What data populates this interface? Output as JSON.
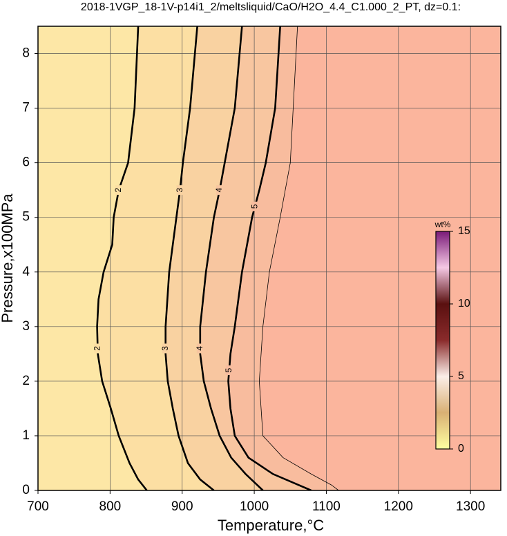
{
  "chart_data": {
    "type": "contour",
    "title": "2018-1VGP_18-1V-p14i1_2/meltsliquid/CaO/H2O_4.4_C1.000_2_PT, dz=0.1:",
    "x_label": "Temperature,°C",
    "y_label": "Pressure,x100MPa",
    "xlim": [
      700,
      1342
    ],
    "ylim": [
      0,
      8.5
    ],
    "xticks": [
      700,
      800,
      900,
      1000,
      1100,
      1200,
      1300
    ],
    "yticks": [
      0,
      1,
      2,
      3,
      4,
      5,
      6,
      7,
      8
    ],
    "grid": true,
    "background": "#fde7a6",
    "contours": [
      {
        "label": "2",
        "fill": "#fcdfa3",
        "x": [
          839,
          834,
          825,
          812,
          805,
          803,
          791,
          784,
          782,
          783,
          789,
          801,
          812,
          827,
          839,
          851
        ],
        "y": [
          8.5,
          7,
          6,
          5.5,
          5,
          4.5,
          4,
          3.5,
          3,
          2.5,
          2,
          1.5,
          1,
          0.5,
          0.2,
          0
        ]
      },
      {
        "label": "3",
        "fill": "#f9d2a1",
        "x": [
          921,
          911,
          901,
          897,
          892,
          882,
          877,
          877,
          880,
          887,
          895,
          908,
          925,
          944
        ],
        "y": [
          8.5,
          7,
          6,
          5.5,
          5,
          4,
          3,
          2.5,
          2,
          1.5,
          1,
          0.5,
          0.2,
          0
        ]
      },
      {
        "label": "4",
        "fill": "#f8c6a0",
        "x": [
          983,
          973,
          959,
          952,
          944,
          933,
          925,
          925,
          930,
          940,
          952,
          968,
          988,
          1012
        ],
        "y": [
          8.5,
          7,
          6,
          5.5,
          5,
          4,
          3,
          2.5,
          2,
          1.5,
          1,
          0.6,
          0.3,
          0
        ]
      },
      {
        "label": "5",
        "fill": "#f8bc9e",
        "x": [
          1036,
          1029,
          1016,
          1007,
          997,
          983,
          973,
          967,
          964,
          967,
          973,
          992,
          1026,
          1079
        ],
        "y": [
          8.5,
          7,
          6,
          5.5,
          5,
          4,
          3,
          2.5,
          2,
          1.5,
          1,
          0.6,
          0.3,
          0
        ]
      },
      {
        "fill": "#fbb59d",
        "x": [
          1060,
          1050,
          1036,
          1021,
          1012,
          1007,
          1012,
          1040,
          1079,
          1107,
          1117
        ],
        "y": [
          8.5,
          6,
          5,
          4,
          3,
          2,
          1,
          0.6,
          0.3,
          0.1,
          0
        ]
      }
    ],
    "label_positions": [
      [
        5.5,
        2.6
      ],
      [
        5.5,
        2.6
      ],
      [
        5.5,
        2.6
      ],
      [
        5.2,
        2.2
      ]
    ],
    "colorbar": {
      "label": "wt%",
      "lim": [
        0,
        15
      ],
      "ticks": [
        0,
        5,
        10,
        15
      ],
      "colors": [
        "#ffffa0",
        "#d9b074",
        "#fbeee8",
        "#8a2b2b",
        "#5a1010",
        "#f5c8e4",
        "#7a1a78"
      ]
    }
  }
}
